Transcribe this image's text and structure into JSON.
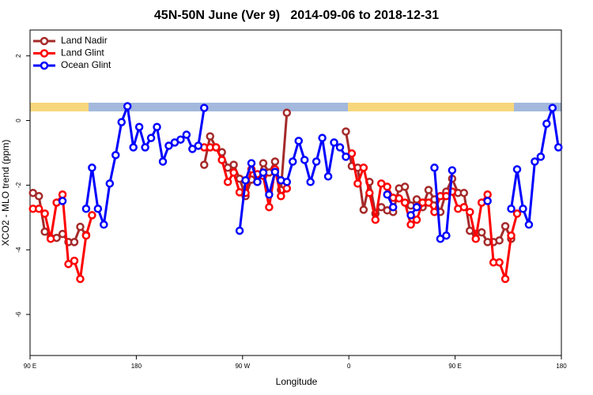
{
  "chart_data": {
    "type": "line",
    "title": "45N-50N June (Ver 9)   2014-09-06 to 2018-12-31",
    "x_label": "Longitude",
    "y_label": "XCO2 - MLO trend (ppm)",
    "xlim": [
      90,
      540
    ],
    "xticks": [
      {
        "value": 90,
        "label": "90 E"
      },
      180,
      {
        "value": 270,
        "label": "90 W"
      },
      {
        "value": 360,
        "label": "0"
      },
      {
        "value": 450,
        "label": "90 E"
      },
      {
        "value": 540,
        "label": "180"
      }
    ],
    "ylim": [
      -7.27,
      2.8
    ],
    "yticks": [
      2,
      0,
      -2,
      -4,
      -6
    ],
    "legend": "topleft",
    "x": [
      92.5,
      97.5,
      102.5,
      107.5,
      112.5,
      117.5,
      122.5,
      127.5,
      132.5,
      137.5,
      142.5,
      147.5,
      152.5,
      157.5,
      162.5,
      167.5,
      172.5,
      177.5,
      182.5,
      187.5,
      192.5,
      197.5,
      202.5,
      207.5,
      212.5,
      217.5,
      222.5,
      227.5,
      232.5,
      237.5,
      242.5,
      247.5,
      252.5,
      257.5,
      262.5,
      267.5,
      272.5,
      277.5,
      282.5,
      287.5,
      292.5,
      297.5,
      302.5,
      307.5,
      312.5,
      317.5,
      322.5,
      327.5,
      332.5,
      337.5,
      342.5,
      347.5,
      352.5,
      357.5,
      362.5,
      367.5,
      372.5,
      377.5,
      382.5,
      387.5,
      392.5,
      397.5,
      402.5,
      407.5,
      412.5,
      417.5,
      422.5,
      427.5,
      432.5,
      437.5,
      442.5,
      447.5,
      452.5,
      457.5,
      462.5,
      467.5,
      472.5,
      477.5,
      482.5,
      487.5,
      492.5,
      497.5,
      502.5,
      507.5,
      512.5,
      517.5,
      522.5,
      527.5,
      532.5,
      537.5
    ],
    "series": [
      {
        "name": "Land Nadir",
        "color": "#a52a2a",
        "values": [
          -2.24,
          -2.34,
          -3.44,
          -3.63,
          -3.63,
          -3.51,
          -3.76,
          -3.76,
          -3.29,
          -3.54,
          null,
          null,
          null,
          null,
          null,
          null,
          null,
          null,
          null,
          null,
          null,
          null,
          null,
          null,
          null,
          null,
          null,
          null,
          null,
          -1.37,
          -0.49,
          -0.83,
          -0.98,
          -1.46,
          -1.37,
          -1.8,
          -2.34,
          -1.83,
          -1.9,
          -1.32,
          -1.61,
          -1.27,
          -2.15,
          0.24,
          null,
          null,
          null,
          null,
          null,
          null,
          null,
          null,
          null,
          -0.34,
          -1.41,
          -1.46,
          -2.76,
          -1.9,
          -2.88,
          -2.68,
          -2.78,
          -2.83,
          -2.1,
          -2.05,
          -2.63,
          -2.44,
          -2.68,
          -2.15,
          -2.44,
          -2.83,
          -2.2,
          -1.8,
          -2.24,
          -2.24,
          -3.41,
          -3.51,
          -3.46,
          -3.76,
          -3.76,
          -3.71,
          -3.27,
          -3.66,
          null,
          null,
          null,
          null,
          null,
          null,
          null,
          null
        ]
      },
      {
        "name": "Land Glint",
        "color": "#ff0000",
        "values": [
          -2.73,
          -2.73,
          -2.88,
          -3.66,
          -2.54,
          -2.29,
          -4.44,
          -4.34,
          -4.9,
          -3.56,
          -2.93,
          null,
          null,
          null,
          null,
          null,
          null,
          null,
          null,
          null,
          null,
          null,
          null,
          null,
          null,
          null,
          null,
          null,
          null,
          -0.83,
          -0.83,
          -0.83,
          -1.22,
          -1.9,
          -1.61,
          -2.22,
          -2.24,
          -1.51,
          -1.66,
          -1.71,
          -2.68,
          -1.51,
          -2.34,
          -2.1,
          null,
          null,
          null,
          null,
          null,
          null,
          null,
          null,
          null,
          null,
          -1.02,
          -1.95,
          -1.46,
          -2.24,
          -3.07,
          -1.95,
          -2.05,
          -2.39,
          -2.41,
          -2.54,
          -3.22,
          -3.07,
          -2.54,
          -2.54,
          -2.83,
          -2.34,
          -2.34,
          -2.2,
          -2.73,
          -2.68,
          -2.83,
          -3.66,
          -2.54,
          -2.29,
          -4.39,
          -4.39,
          -4.9,
          -3.56,
          -2.88,
          null,
          null,
          null,
          null,
          null,
          null,
          null
        ]
      },
      {
        "name": "Ocean Glint",
        "color": "#0000ff",
        "values": [
          null,
          null,
          null,
          null,
          null,
          -2.49,
          null,
          null,
          null,
          -2.73,
          -1.46,
          -2.73,
          -3.22,
          -1.95,
          -1.07,
          -0.05,
          0.44,
          -0.83,
          -0.2,
          -0.83,
          -0.54,
          -0.2,
          -1.27,
          -0.78,
          -0.68,
          -0.59,
          -0.44,
          -0.88,
          -0.78,
          0.39,
          null,
          null,
          null,
          null,
          null,
          -3.41,
          -1.85,
          -1.32,
          -1.9,
          -1.61,
          -2.29,
          -1.59,
          -1.85,
          -1.9,
          -1.27,
          -0.63,
          -1.22,
          -1.9,
          -1.27,
          -0.54,
          -1.73,
          -0.68,
          -0.83,
          -1.12,
          null,
          null,
          null,
          null,
          null,
          null,
          -2.29,
          -2.68,
          null,
          null,
          -2.93,
          -2.68,
          null,
          null,
          -1.46,
          -3.66,
          -3.56,
          -1.54,
          null,
          null,
          null,
          null,
          null,
          -2.49,
          null,
          null,
          null,
          -2.73,
          -1.51,
          -2.73,
          -3.22,
          -1.27,
          -1.12,
          -0.1,
          0.39,
          -0.83
        ]
      }
    ]
  }
}
